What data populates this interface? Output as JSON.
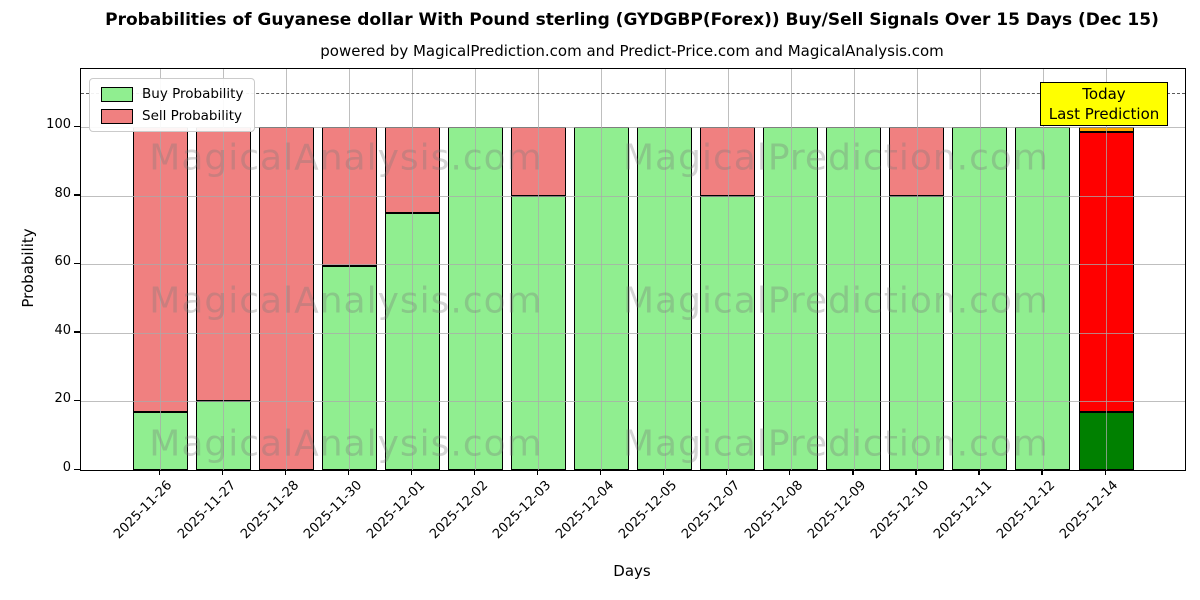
{
  "title": "Probabilities of Guyanese dollar With Pound sterling (GYDGBP(Forex)) Buy/Sell Signals Over 15 Days (Dec 15)",
  "subtitle": "powered by MagicalPrediction.com and Predict-Price.com and MagicalAnalysis.com",
  "chart_data": {
    "type": "bar",
    "stacked": true,
    "title": "Probabilities of Guyanese dollar With Pound sterling (GYDGBP(Forex)) Buy/Sell Signals Over 15 Days (Dec 15)",
    "xlabel": "Days",
    "ylabel": "Probability",
    "ylim": [
      0,
      117
    ],
    "yticks": [
      0,
      20,
      40,
      60,
      80,
      100
    ],
    "dashed_guide_y": 110,
    "grid": true,
    "legend_position": "upper left",
    "categories": [
      "2025-11-26",
      "2025-11-27",
      "2025-11-28",
      "2025-11-30",
      "2025-12-01",
      "2025-12-02",
      "2025-12-03",
      "2025-12-04",
      "2025-12-05",
      "2025-12-07",
      "2025-12-08",
      "2025-12-09",
      "2025-12-10",
      "2025-12-11",
      "2025-12-12",
      "2025-12-14"
    ],
    "series": [
      {
        "name": "Buy Probability",
        "color": "#90EE90",
        "values": [
          17,
          20,
          0,
          59.5,
          75,
          100,
          80,
          100,
          100,
          80,
          100,
          100,
          80,
          100,
          100,
          17
        ]
      },
      {
        "name": "Sell Probability",
        "color": "#F08080",
        "values": [
          83,
          80,
          100,
          40.5,
          25,
          0,
          20,
          0,
          0,
          20,
          0,
          0,
          20,
          0,
          0,
          83
        ]
      }
    ],
    "today_bar": {
      "index": 15,
      "buy_color": "#008000",
      "sell_color": "#FF0000",
      "cap_color": "#FFA500",
      "cap_value": 1.5
    },
    "annotation_box": {
      "lines": [
        "Today",
        "Last Prediction"
      ],
      "bg_color": "#FFFF00",
      "border_color": "#000000"
    },
    "watermarks": {
      "texts": [
        "MagicalAnalysis.com",
        "MagicalPrediction.com"
      ]
    }
  }
}
